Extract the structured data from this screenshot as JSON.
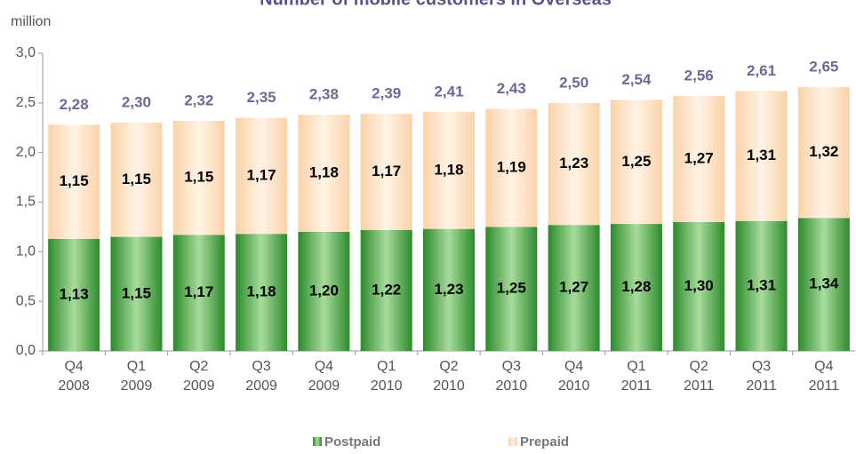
{
  "chart_data": {
    "type": "stacked-bar",
    "title": "Number of mobile customers in Overseas",
    "ylabel": "million",
    "categories": [
      [
        "Q4",
        "2008"
      ],
      [
        "Q1",
        "2009"
      ],
      [
        "Q2",
        "2009"
      ],
      [
        "Q3",
        "2009"
      ],
      [
        "Q4",
        "2009"
      ],
      [
        "Q1",
        "2010"
      ],
      [
        "Q2",
        "2010"
      ],
      [
        "Q3",
        "2010"
      ],
      [
        "Q4",
        "2010"
      ],
      [
        "Q1",
        "2011"
      ],
      [
        "Q2",
        "2011"
      ],
      [
        "Q3",
        "2011"
      ],
      [
        "Q4",
        "2011"
      ]
    ],
    "series": [
      {
        "name": "Postpaid",
        "color": "#3a9a3a",
        "values": [
          1.13,
          1.15,
          1.17,
          1.18,
          1.2,
          1.22,
          1.23,
          1.25,
          1.27,
          1.28,
          1.3,
          1.31,
          1.34
        ],
        "value_labels": [
          "1,13",
          "1,15",
          "1,17",
          "1,18",
          "1,20",
          "1,22",
          "1,23",
          "1,25",
          "1,27",
          "1,28",
          "1,30",
          "1,31",
          "1,34"
        ]
      },
      {
        "name": "Prepaid",
        "color": "#fcd9b4",
        "values": [
          1.15,
          1.15,
          1.15,
          1.17,
          1.18,
          1.17,
          1.18,
          1.19,
          1.23,
          1.25,
          1.27,
          1.31,
          1.32
        ],
        "value_labels": [
          "1,15",
          "1,15",
          "1,15",
          "1,17",
          "1,18",
          "1,17",
          "1,18",
          "1,19",
          "1,23",
          "1,25",
          "1,27",
          "1,31",
          "1,32"
        ]
      }
    ],
    "totals": {
      "values": [
        2.28,
        2.3,
        2.32,
        2.35,
        2.38,
        2.39,
        2.41,
        2.43,
        2.5,
        2.54,
        2.56,
        2.61,
        2.65
      ],
      "value_labels": [
        "2,28",
        "2,30",
        "2,32",
        "2,35",
        "2,38",
        "2,39",
        "2,41",
        "2,43",
        "2,50",
        "2,54",
        "2,56",
        "2,61",
        "2,65"
      ]
    },
    "ylim": [
      0,
      3
    ],
    "yticks": [
      {
        "value": 0,
        "label": "0,0"
      },
      {
        "value": 0.5,
        "label": "0,5"
      },
      {
        "value": 1,
        "label": "1,0"
      },
      {
        "value": 1.5,
        "label": "1,5"
      },
      {
        "value": 2,
        "label": "2,0"
      },
      {
        "value": 2.5,
        "label": "2,5"
      },
      {
        "value": 3,
        "label": "3,0"
      }
    ]
  }
}
